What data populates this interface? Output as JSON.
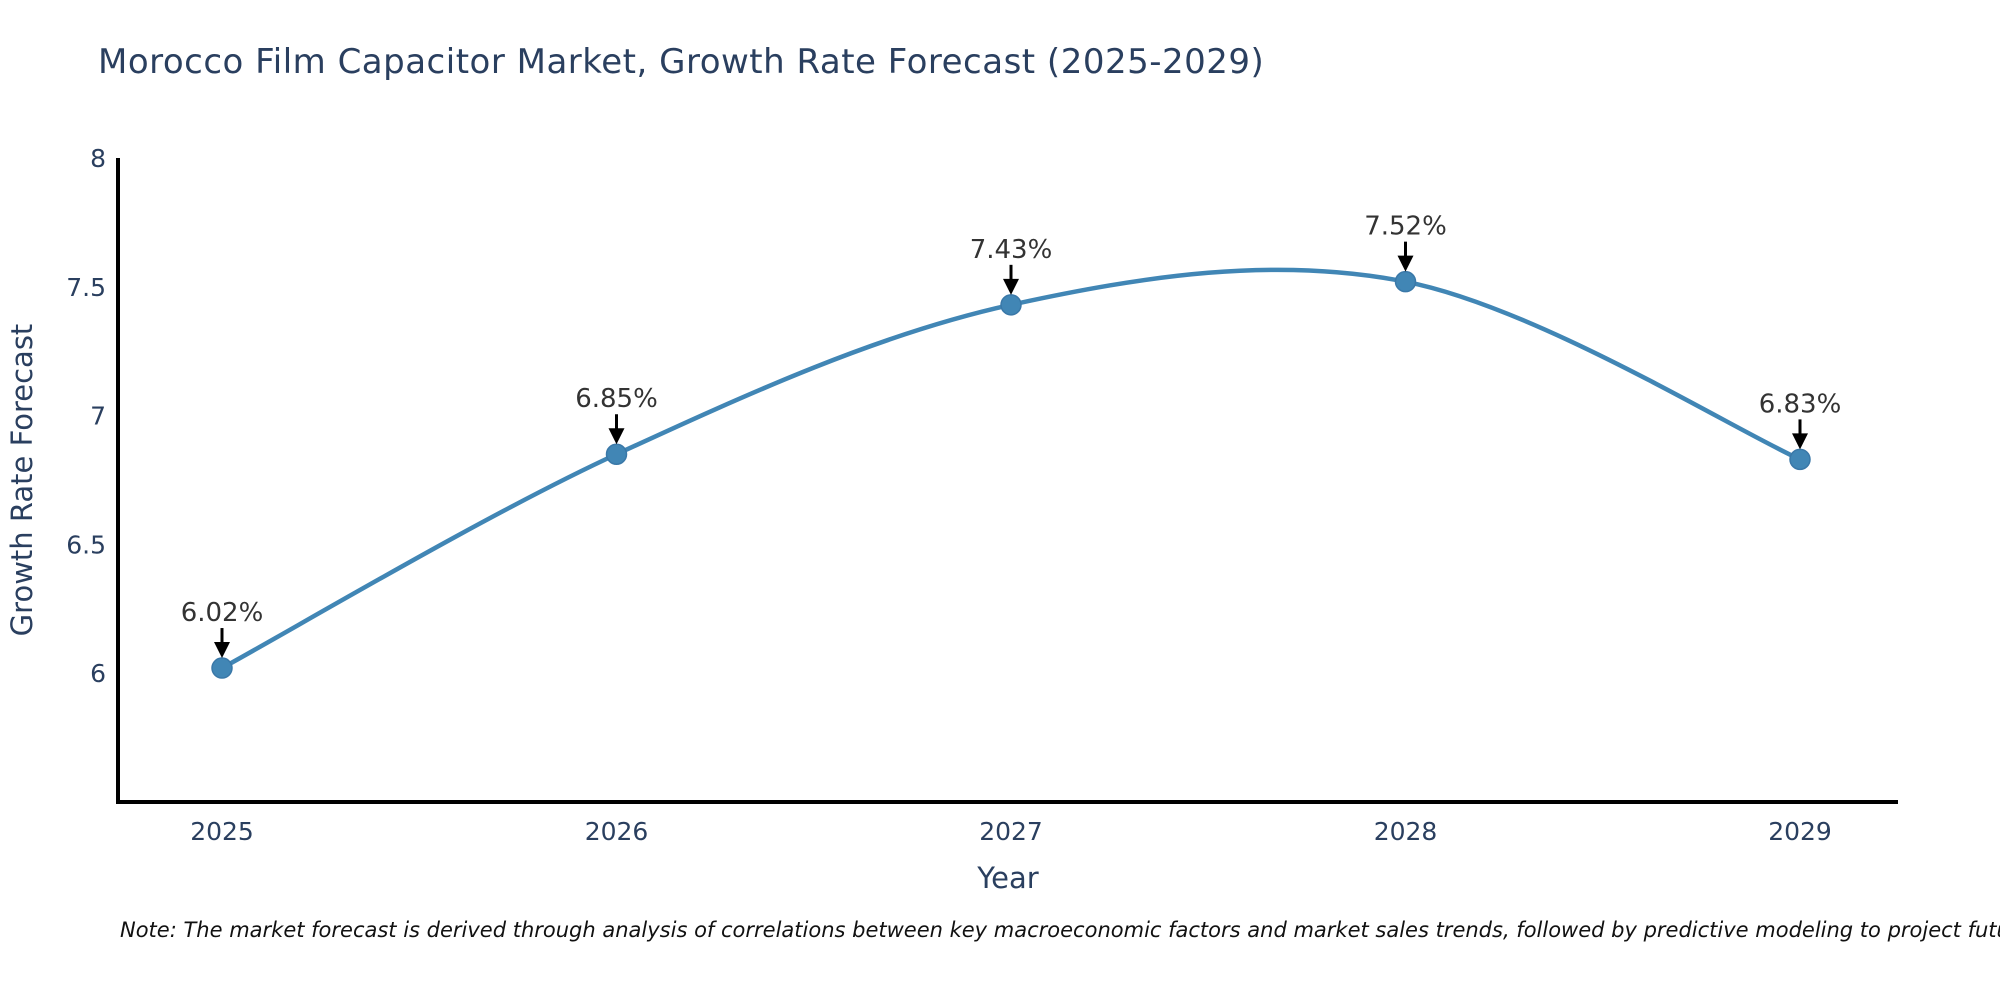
{
  "title": "Morocco Film Capacitor Market, Growth Rate Forecast (2025-2029)",
  "note": "Note: The market forecast is derived through analysis of correlations between key macroeconomic factors and market sales trends, followed by predictive modeling to project future sales",
  "chart_data": {
    "type": "line",
    "title": "Morocco Film Capacitor Market, Growth Rate Forecast (2025-2029)",
    "categories": [
      "2025",
      "2026",
      "2027",
      "2028",
      "2029"
    ],
    "values": [
      6.02,
      6.85,
      7.43,
      7.52,
      6.83
    ],
    "point_labels": [
      "6.02%",
      "6.85%",
      "7.43%",
      "7.52%",
      "6.83%"
    ],
    "xlabel": "Year",
    "ylabel": "Growth Rate Forecast",
    "yticks": [
      6,
      6.5,
      7,
      7.5,
      8
    ],
    "ytick_labels": [
      "6",
      "6.5",
      "7",
      "7.5",
      "8"
    ],
    "ylim": [
      5.5,
      8.0
    ],
    "grid": false,
    "legend": "none",
    "line_shape": "spline",
    "annotation_style": "value-above-with-down-arrow",
    "colors": {
      "line": "#4186b5",
      "marker": "#4186b5",
      "marker_edge": "#3a78a8",
      "axis": "#000000",
      "text": "#2a3f5f",
      "annotation_text": "#333333",
      "arrow": "#000000"
    }
  }
}
